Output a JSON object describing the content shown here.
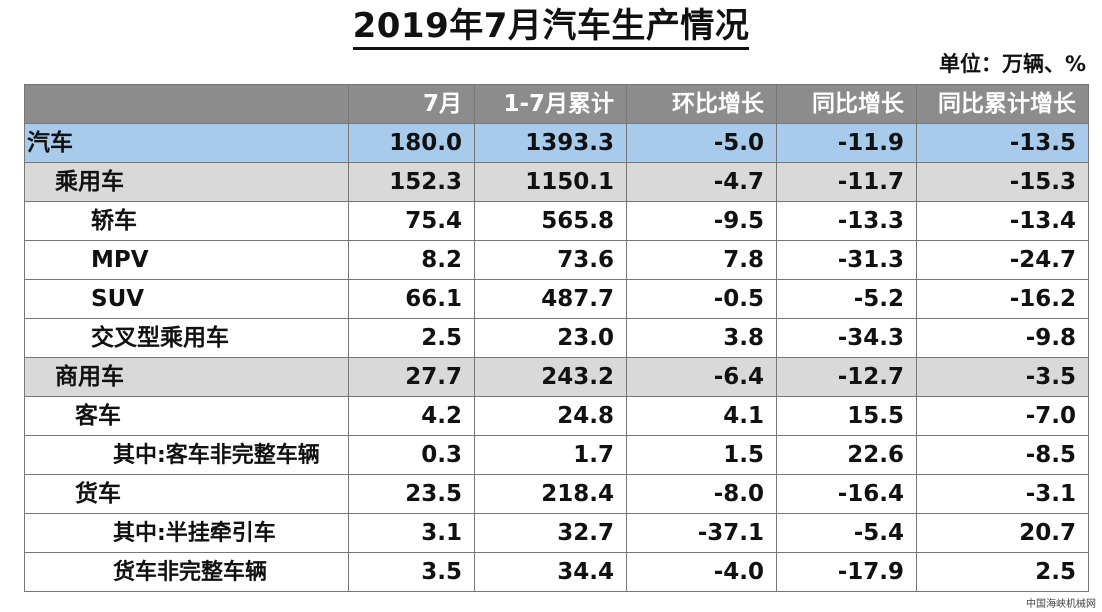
{
  "title": "2019年7月汽车生产情况",
  "unit_label": "单位：万辆、%",
  "watermark": "中国海峡机械网",
  "colors": {
    "header_bg": "#8c8c8c",
    "total_row_bg": "#a8caeb",
    "category_row_bg": "#d9d9d9"
  },
  "chart_data": {
    "type": "table",
    "title": "2019年7月汽车生产情况",
    "unit": "单位：万辆、%",
    "columns": [
      "",
      "7月",
      "1-7月累计",
      "环比增长",
      "同比增长",
      "同比累计增长"
    ],
    "rows": [
      {
        "name": "汽车",
        "level": 0,
        "values": [
          "180.0",
          "1393.3",
          "-5.0",
          "-11.9",
          "-13.5"
        ]
      },
      {
        "name": "乘用车",
        "level": 1,
        "values": [
          "152.3",
          "1150.1",
          "-4.7",
          "-11.7",
          "-15.3"
        ]
      },
      {
        "name": "轿车",
        "level": 2,
        "values": [
          "75.4",
          "565.8",
          "-9.5",
          "-13.3",
          "-13.4"
        ]
      },
      {
        "name": "MPV",
        "level": 2,
        "values": [
          "8.2",
          "73.6",
          "7.8",
          "-31.3",
          "-24.7"
        ]
      },
      {
        "name": "SUV",
        "level": 2,
        "values": [
          "66.1",
          "487.7",
          "-0.5",
          "-5.2",
          "-16.2"
        ]
      },
      {
        "name": "交叉型乘用车",
        "level": 2,
        "values": [
          "2.5",
          "23.0",
          "3.8",
          "-34.3",
          "-9.8"
        ]
      },
      {
        "name": "商用车",
        "level": 1,
        "values": [
          "27.7",
          "243.2",
          "-6.4",
          "-12.7",
          "-3.5"
        ]
      },
      {
        "name": "客车",
        "level": 3,
        "values": [
          "4.2",
          "24.8",
          "4.1",
          "15.5",
          "-7.0"
        ]
      },
      {
        "name": "其中:客车非完整车辆",
        "level": 4,
        "values": [
          "0.3",
          "1.7",
          "1.5",
          "22.6",
          "-8.5"
        ]
      },
      {
        "name": "货车",
        "level": 3,
        "values": [
          "23.5",
          "218.4",
          "-8.0",
          "-16.4",
          "-3.1"
        ]
      },
      {
        "name": "其中:半挂牵引车",
        "level": 4,
        "values": [
          "3.1",
          "32.7",
          "-37.1",
          "-5.4",
          "20.7"
        ]
      },
      {
        "name": "货车非完整车辆",
        "level": 4,
        "values": [
          "3.5",
          "34.4",
          "-4.0",
          "-17.9",
          "2.5"
        ]
      }
    ]
  }
}
